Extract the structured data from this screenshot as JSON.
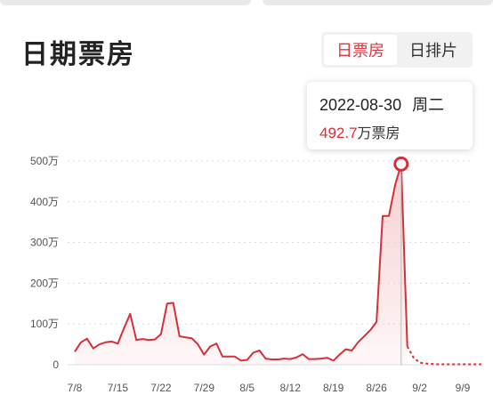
{
  "page": {
    "title": "日期票房",
    "toggle": {
      "options": [
        "日票房",
        "日排片"
      ],
      "active": 0
    }
  },
  "tooltip": {
    "date": "2022-08-30",
    "weekday": "周二",
    "value": "492.7",
    "unit": "万票房"
  },
  "colors": {
    "accent": "#d4303a",
    "fill": "#f6c9cc",
    "grid": "#dcdcdc"
  },
  "chart_data": {
    "type": "area",
    "title": "",
    "xlabel": "",
    "ylabel": "",
    "ylim": [
      0,
      500
    ],
    "y_ticks": [
      0,
      100,
      200,
      300,
      400,
      500
    ],
    "y_tick_labels": [
      "0",
      "100万",
      "200万",
      "300万",
      "400万",
      "500万"
    ],
    "x_ticks": [
      "7/8",
      "7/15",
      "7/22",
      "7/29",
      "8/5",
      "8/12",
      "8/19",
      "8/26",
      "9/2",
      "9/9"
    ],
    "grid": true,
    "highlight": {
      "x": "8/30",
      "y": 492.7
    },
    "series": [
      {
        "style": "solid",
        "x": [
          "7/8",
          "7/9",
          "7/10",
          "7/11",
          "7/12",
          "7/13",
          "7/14",
          "7/15",
          "7/16",
          "7/17",
          "7/18",
          "7/19",
          "7/20",
          "7/21",
          "7/22",
          "7/23",
          "7/24",
          "7/25",
          "7/26",
          "7/27",
          "7/28",
          "7/29",
          "7/30",
          "7/31",
          "8/1",
          "8/2",
          "8/3",
          "8/4",
          "8/5",
          "8/6",
          "8/7",
          "8/8",
          "8/9",
          "8/10",
          "8/11",
          "8/12",
          "8/13",
          "8/14",
          "8/15",
          "8/16",
          "8/17",
          "8/18",
          "8/19",
          "8/20",
          "8/21",
          "8/22",
          "8/23",
          "8/24",
          "8/25",
          "8/26",
          "8/27",
          "8/28",
          "8/29",
          "8/30",
          "8/31"
        ],
        "values": [
          32,
          55,
          64,
          40,
          50,
          55,
          57,
          52,
          90,
          125,
          61,
          63,
          61,
          62,
          75,
          150,
          152,
          70,
          67,
          65,
          50,
          25,
          45,
          52,
          20,
          20,
          20,
          10,
          12,
          30,
          35,
          15,
          13,
          13,
          15,
          14,
          18,
          26,
          14,
          14,
          15,
          17,
          10,
          25,
          38,
          35,
          55,
          70,
          85,
          105,
          365,
          365,
          440,
          492.7,
          45
        ]
      },
      {
        "style": "dashed",
        "x": [
          "8/31",
          "9/1",
          "9/2",
          "9/3",
          "9/4",
          "9/5",
          "9/6",
          "9/7",
          "9/8",
          "9/9",
          "9/10",
          "9/11",
          "9/12"
        ],
        "values": [
          45,
          18,
          5,
          3,
          2,
          1,
          1,
          1,
          1,
          1,
          1,
          1,
          1
        ]
      }
    ]
  }
}
